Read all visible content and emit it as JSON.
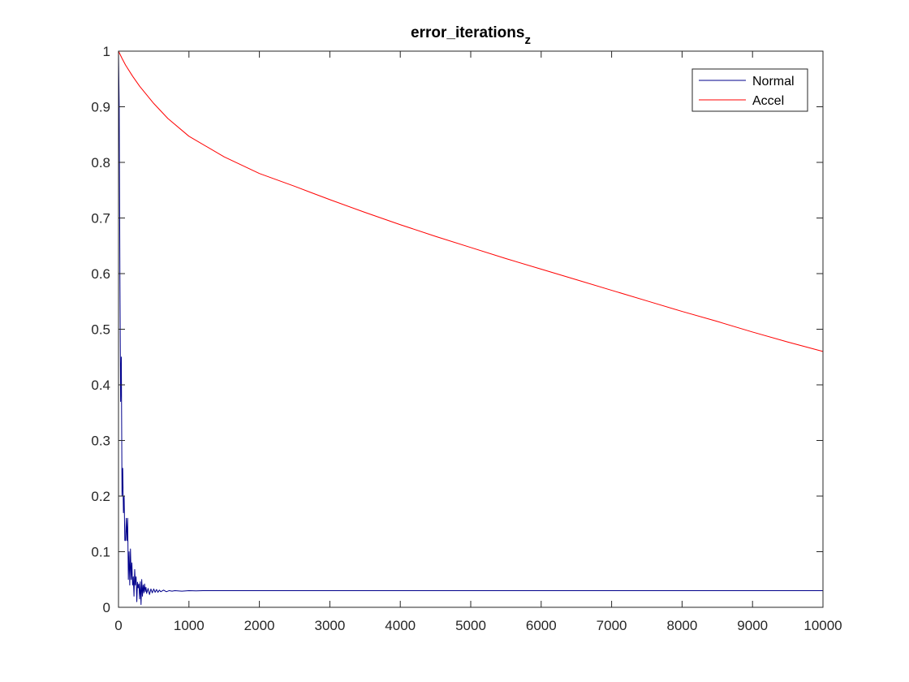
{
  "chart_data": {
    "type": "line",
    "title": "error_iterations",
    "title_subscript": "z",
    "xlabel": "",
    "ylabel": "",
    "xlim": [
      0,
      10000
    ],
    "ylim": [
      0,
      1
    ],
    "xticks": [
      0,
      1000,
      2000,
      3000,
      4000,
      5000,
      6000,
      7000,
      8000,
      9000,
      10000
    ],
    "yticks": [
      0,
      0.1,
      0.2,
      0.3,
      0.4,
      0.5,
      0.6,
      0.7,
      0.8,
      0.9,
      1
    ],
    "xtick_labels": [
      "0",
      "1000",
      "2000",
      "3000",
      "4000",
      "5000",
      "6000",
      "7000",
      "8000",
      "9000",
      "10000"
    ],
    "ytick_labels": [
      "0",
      "0.1",
      "0.2",
      "0.3",
      "0.4",
      "0.5",
      "0.6",
      "0.7",
      "0.8",
      "0.9",
      "1"
    ],
    "grid": false,
    "legend_position": "top-right",
    "series": [
      {
        "name": "Normal",
        "color": "#00008b",
        "x": [
          0,
          10,
          20,
          30,
          40,
          50,
          60,
          70,
          80,
          90,
          100,
          110,
          120,
          130,
          140,
          150,
          160,
          170,
          180,
          190,
          200,
          210,
          220,
          230,
          240,
          250,
          260,
          270,
          280,
          290,
          300,
          310,
          320,
          330,
          340,
          350,
          360,
          370,
          380,
          390,
          400,
          420,
          440,
          460,
          480,
          500,
          520,
          540,
          560,
          580,
          600,
          640,
          680,
          720,
          760,
          800,
          900,
          1000,
          1100,
          1200,
          1300,
          1500,
          2000,
          3000,
          4000,
          5000,
          6000,
          7000,
          8000,
          9000,
          10000
        ],
        "y": [
          1.0,
          0.9,
          0.6,
          0.37,
          0.45,
          0.2,
          0.25,
          0.17,
          0.2,
          0.12,
          0.12,
          0.16,
          0.12,
          0.16,
          0.05,
          0.1,
          0.04,
          0.105,
          0.05,
          0.08,
          0.04,
          0.055,
          0.02,
          0.068,
          0.04,
          0.055,
          0.01,
          0.045,
          0.035,
          0.042,
          0.015,
          0.046,
          0.005,
          0.05,
          0.02,
          0.04,
          0.026,
          0.042,
          0.028,
          0.036,
          0.025,
          0.034,
          0.023,
          0.033,
          0.026,
          0.033,
          0.027,
          0.032,
          0.027,
          0.031,
          0.028,
          0.031,
          0.028,
          0.03,
          0.029,
          0.03,
          0.029,
          0.03,
          0.0295,
          0.03,
          0.03,
          0.03,
          0.03,
          0.03,
          0.03,
          0.03,
          0.03,
          0.03,
          0.03,
          0.03,
          0.03
        ]
      },
      {
        "name": "Accel",
        "color": "#ff0000",
        "x": [
          0,
          50,
          100,
          200,
          300,
          500,
          700,
          1000,
          1500,
          2000,
          2500,
          3000,
          3500,
          4000,
          4500,
          5000,
          5500,
          6000,
          6500,
          7000,
          7500,
          8000,
          8500,
          9000,
          9500,
          10000
        ],
        "y": [
          1.0,
          0.987,
          0.975,
          0.955,
          0.937,
          0.906,
          0.879,
          0.847,
          0.81,
          0.78,
          0.757,
          0.733,
          0.71,
          0.688,
          0.667,
          0.647,
          0.627,
          0.608,
          0.589,
          0.57,
          0.551,
          0.532,
          0.514,
          0.495,
          0.477,
          0.46
        ]
      }
    ]
  }
}
